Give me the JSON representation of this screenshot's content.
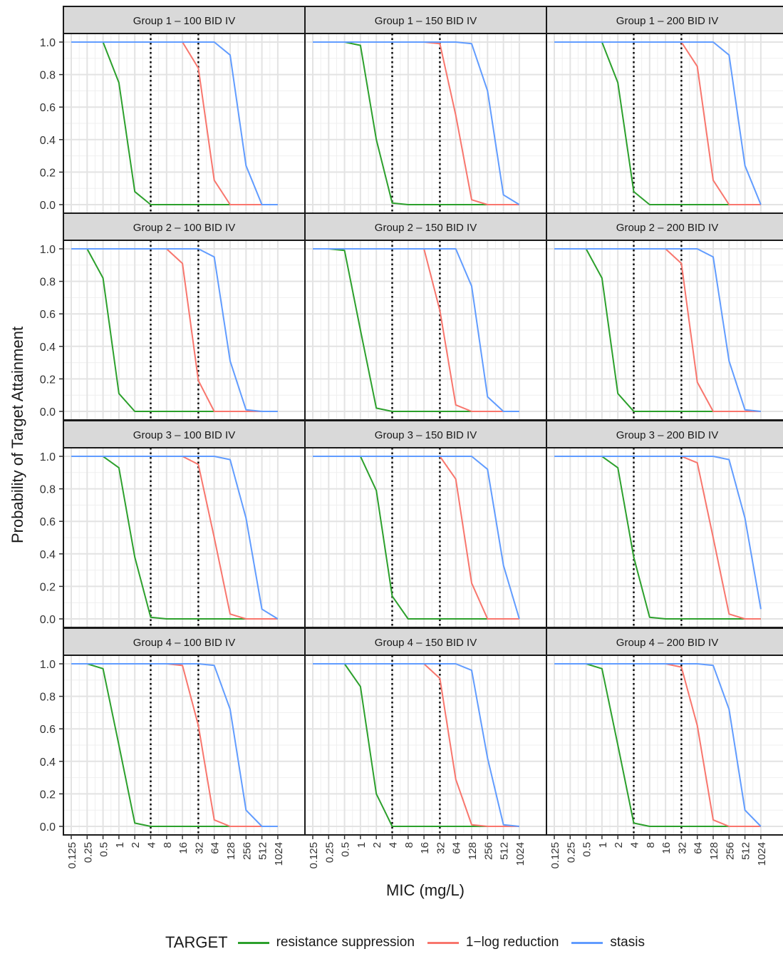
{
  "chart_data": {
    "type": "line",
    "ylabel": "Probability of Target Attainment",
    "xlabel": "MIC (mg/L)",
    "x_ticks": [
      "0.125",
      "0.25",
      "0.5",
      "1",
      "2",
      "4",
      "8",
      "16",
      "32",
      "64",
      "128",
      "256",
      "512",
      "1024"
    ],
    "y_ticks": [
      "0.0",
      "0.2",
      "0.4",
      "0.6",
      "0.8",
      "1.0"
    ],
    "ylim": [
      0,
      1
    ],
    "x_scale": "log2",
    "grid": true,
    "legend_position": "bottom",
    "legend_title": "TARGET",
    "vertical_reference_lines_mic": [
      4,
      32
    ],
    "series_styles": [
      {
        "name": "resistance suppression",
        "color": "#2ca02c"
      },
      {
        "name": "1−log reduction",
        "color": "#f8766d"
      },
      {
        "name": "stasis",
        "color": "#619cff"
      }
    ],
    "x": [
      0.125,
      0.25,
      0.5,
      1,
      2,
      4,
      8,
      16,
      32,
      64,
      128,
      256,
      512,
      1024
    ],
    "panels": [
      {
        "title": "Group 1 – 100 BID IV",
        "series": [
          {
            "name": "resistance suppression",
            "values": [
              1,
              1,
              1,
              0.75,
              0.08,
              0,
              0,
              0,
              0,
              0,
              0,
              0,
              0,
              0
            ]
          },
          {
            "name": "1−log reduction",
            "values": [
              1,
              1,
              1,
              1,
              1,
              1,
              1,
              1,
              0.84,
              0.15,
              0,
              0,
              0,
              0
            ]
          },
          {
            "name": "stasis",
            "values": [
              1,
              1,
              1,
              1,
              1,
              1,
              1,
              1,
              1,
              1,
              0.92,
              0.24,
              0,
              0
            ]
          }
        ]
      },
      {
        "title": "Group 1 – 150 BID IV",
        "series": [
          {
            "name": "resistance suppression",
            "values": [
              1,
              1,
              1,
              0.98,
              0.4,
              0.01,
              0,
              0,
              0,
              0,
              0,
              0,
              0,
              0
            ]
          },
          {
            "name": "1−log reduction",
            "values": [
              1,
              1,
              1,
              1,
              1,
              1,
              1,
              1,
              0.99,
              0.55,
              0.03,
              0,
              0,
              0
            ]
          },
          {
            "name": "stasis",
            "values": [
              1,
              1,
              1,
              1,
              1,
              1,
              1,
              1,
              1,
              1,
              0.99,
              0.7,
              0.06,
              0
            ]
          }
        ]
      },
      {
        "title": "Group 1 – 200 BID IV",
        "series": [
          {
            "name": "resistance suppression",
            "values": [
              1,
              1,
              1,
              1,
              0.75,
              0.08,
              0,
              0,
              0,
              0,
              0,
              0,
              0,
              0
            ]
          },
          {
            "name": "1−log reduction",
            "values": [
              1,
              1,
              1,
              1,
              1,
              1,
              1,
              1,
              1,
              0.85,
              0.15,
              0,
              0,
              0
            ]
          },
          {
            "name": "stasis",
            "values": [
              1,
              1,
              1,
              1,
              1,
              1,
              1,
              1,
              1,
              1,
              1,
              0.92,
              0.24,
              0
            ]
          }
        ]
      },
      {
        "title": "Group 2 – 100 BID IV",
        "series": [
          {
            "name": "resistance suppression",
            "values": [
              1,
              1,
              0.82,
              0.11,
              0,
              0,
              0,
              0,
              0,
              0,
              0,
              0,
              0,
              0
            ]
          },
          {
            "name": "1−log reduction",
            "values": [
              1,
              1,
              1,
              1,
              1,
              1,
              1,
              0.91,
              0.19,
              0,
              0,
              0,
              0,
              0
            ]
          },
          {
            "name": "stasis",
            "values": [
              1,
              1,
              1,
              1,
              1,
              1,
              1,
              1,
              1,
              0.95,
              0.31,
              0.01,
              0,
              0
            ]
          }
        ]
      },
      {
        "title": "Group 2 – 150 BID IV",
        "series": [
          {
            "name": "resistance suppression",
            "values": [
              1,
              1,
              0.99,
              0.5,
              0.02,
              0,
              0,
              0,
              0,
              0,
              0,
              0,
              0,
              0
            ]
          },
          {
            "name": "1−log reduction",
            "values": [
              1,
              1,
              1,
              1,
              1,
              1,
              1,
              1,
              0.62,
              0.04,
              0,
              0,
              0,
              0
            ]
          },
          {
            "name": "stasis",
            "values": [
              1,
              1,
              1,
              1,
              1,
              1,
              1,
              1,
              1,
              1,
              0.77,
              0.09,
              0,
              0
            ]
          }
        ]
      },
      {
        "title": "Group 2 – 200 BID IV",
        "series": [
          {
            "name": "resistance suppression",
            "values": [
              1,
              1,
              1,
              0.82,
              0.11,
              0,
              0,
              0,
              0,
              0,
              0,
              0,
              0,
              0
            ]
          },
          {
            "name": "1−log reduction",
            "values": [
              1,
              1,
              1,
              1,
              1,
              1,
              1,
              1,
              0.91,
              0.18,
              0,
              0,
              0,
              0
            ]
          },
          {
            "name": "stasis",
            "values": [
              1,
              1,
              1,
              1,
              1,
              1,
              1,
              1,
              1,
              1,
              0.95,
              0.31,
              0.01,
              0
            ]
          }
        ]
      },
      {
        "title": "Group 3 – 100 BID IV",
        "series": [
          {
            "name": "resistance suppression",
            "values": [
              1,
              1,
              1,
              0.93,
              0.38,
              0.01,
              0,
              0,
              0,
              0,
              0,
              0,
              0,
              0
            ]
          },
          {
            "name": "1−log reduction",
            "values": [
              1,
              1,
              1,
              1,
              1,
              1,
              1,
              1,
              0.95,
              0.5,
              0.03,
              0,
              0,
              0
            ]
          },
          {
            "name": "stasis",
            "values": [
              1,
              1,
              1,
              1,
              1,
              1,
              1,
              1,
              1,
              1,
              0.98,
              0.62,
              0.06,
              0
            ]
          }
        ]
      },
      {
        "title": "Group 3 – 150 BID IV",
        "series": [
          {
            "name": "resistance suppression",
            "values": [
              1,
              1,
              1,
              1,
              0.79,
              0.14,
              0,
              0,
              0,
              0,
              0,
              0,
              0,
              0
            ]
          },
          {
            "name": "1−log reduction",
            "values": [
              1,
              1,
              1,
              1,
              1,
              1,
              1,
              1,
              1,
              0.86,
              0.22,
              0,
              0,
              0
            ]
          },
          {
            "name": "stasis",
            "values": [
              1,
              1,
              1,
              1,
              1,
              1,
              1,
              1,
              1,
              1,
              1,
              0.92,
              0.33,
              0
            ]
          }
        ]
      },
      {
        "title": "Group 3 – 200 BID IV",
        "series": [
          {
            "name": "resistance suppression",
            "values": [
              1,
              1,
              1,
              1,
              0.93,
              0.38,
              0.01,
              0,
              0,
              0,
              0,
              0,
              0,
              0
            ]
          },
          {
            "name": "1−log reduction",
            "values": [
              1,
              1,
              1,
              1,
              1,
              1,
              1,
              1,
              1,
              0.96,
              0.5,
              0.03,
              0,
              0
            ]
          },
          {
            "name": "stasis",
            "values": [
              1,
              1,
              1,
              1,
              1,
              1,
              1,
              1,
              1,
              1,
              1,
              0.98,
              0.62,
              0.06
            ]
          }
        ]
      },
      {
        "title": "Group 4 – 100 BID IV",
        "series": [
          {
            "name": "resistance suppression",
            "values": [
              1,
              1,
              0.97,
              0.5,
              0.02,
              0,
              0,
              0,
              0,
              0,
              0,
              0,
              0,
              0
            ]
          },
          {
            "name": "1−log reduction",
            "values": [
              1,
              1,
              1,
              1,
              1,
              1,
              1,
              0.99,
              0.62,
              0.04,
              0,
              0,
              0,
              0
            ]
          },
          {
            "name": "stasis",
            "values": [
              1,
              1,
              1,
              1,
              1,
              1,
              1,
              1,
              1,
              0.99,
              0.72,
              0.1,
              0,
              0
            ]
          }
        ]
      },
      {
        "title": "Group 4 – 150 BID IV",
        "series": [
          {
            "name": "resistance suppression",
            "values": [
              1,
              1,
              1,
              0.86,
              0.2,
              0,
              0,
              0,
              0,
              0,
              0,
              0,
              0,
              0
            ]
          },
          {
            "name": "1−log reduction",
            "values": [
              1,
              1,
              1,
              1,
              1,
              1,
              1,
              1,
              0.91,
              0.29,
              0.01,
              0,
              0,
              0
            ]
          },
          {
            "name": "stasis",
            "values": [
              1,
              1,
              1,
              1,
              1,
              1,
              1,
              1,
              1,
              1,
              0.96,
              0.42,
              0.01,
              0
            ]
          }
        ]
      },
      {
        "title": "Group 4 – 200 BID IV",
        "series": [
          {
            "name": "resistance suppression",
            "values": [
              1,
              1,
              1,
              0.97,
              0.5,
              0.02,
              0,
              0,
              0,
              0,
              0,
              0,
              0,
              0
            ]
          },
          {
            "name": "1−log reduction",
            "values": [
              1,
              1,
              1,
              1,
              1,
              1,
              1,
              1,
              0.98,
              0.62,
              0.04,
              0,
              0,
              0
            ]
          },
          {
            "name": "stasis",
            "values": [
              1,
              1,
              1,
              1,
              1,
              1,
              1,
              1,
              1,
              1,
              0.99,
              0.72,
              0.1,
              0
            ]
          }
        ]
      }
    ]
  }
}
